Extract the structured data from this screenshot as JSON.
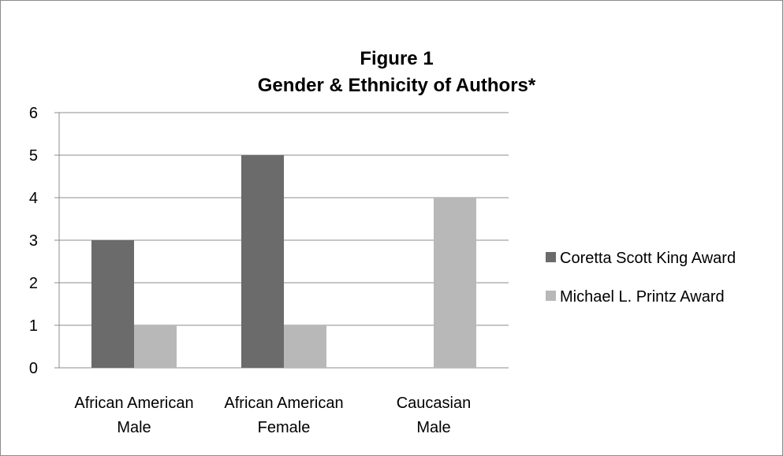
{
  "chart_data": {
    "type": "bar",
    "title": "Figure 1",
    "subtitle": "Gender & Ethnicity of Authors*",
    "categories": [
      [
        "African American",
        "Male"
      ],
      [
        "African American",
        "Female"
      ],
      [
        "Caucasian",
        "Male"
      ]
    ],
    "series": [
      {
        "name": "Coretta Scott King Award",
        "values": [
          3,
          5,
          0
        ],
        "color": "#6b6b6b"
      },
      {
        "name": "Michael L. Printz Award",
        "values": [
          1,
          1,
          4
        ],
        "color": "#b8b8b8"
      }
    ],
    "ylim": [
      0,
      6
    ],
    "yticks": [
      "0",
      "1",
      "2",
      "3",
      "4",
      "5",
      "6"
    ],
    "grid": true,
    "gridColor": "#8c8c8c",
    "legend_position": "right"
  }
}
